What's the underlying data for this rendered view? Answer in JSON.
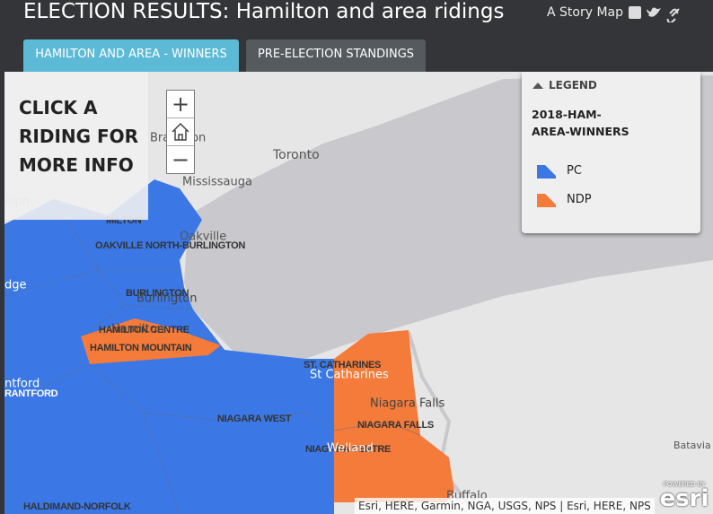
{
  "header": {
    "title": "ELECTION RESULTS: Hamilton and area ridings",
    "story_map_label": "A Story Map"
  },
  "tabs": [
    "HAMILTON AND AREA - WINNERS",
    "PRE-ELECTION STANDINGS"
  ],
  "panel": {
    "lines": [
      "CLICK A",
      "RIDING FOR",
      "MORE INFO"
    ]
  },
  "zoom": {
    "in": "+",
    "out": "−"
  },
  "legend": {
    "heading": "LEGEND",
    "title_lines": [
      "2018-HAM-",
      "AREA-WINNERS"
    ],
    "items": [
      {
        "label": "PC",
        "color": "#3b78e6"
      },
      {
        "label": "NDP",
        "color": "#f47b3a"
      }
    ]
  },
  "map_labels": [
    "Bra",
    "ton",
    "Toronto",
    "Mississauga",
    "elph",
    "MILTON",
    "Oakville",
    "OAKVILLE NORTH-BURLINGTON",
    "dge",
    "BURLINGTON",
    "Burlington",
    "HAMILTON CENTRE",
    "Hamilton",
    "HAMILTON MOUNTAIN",
    "ST. CATHARINES",
    "St Catharines",
    "Niagara Falls",
    "NIAGARA FALLS",
    "NIAGARA WEST",
    "NIAGARA CENTRE",
    "Welland",
    "ntford",
    "RANTFORD",
    "Batavia",
    "Buffalo",
    "HALDIMAND-NORFOLK"
  ],
  "attribution": "Esri, HERE, Garmin, NGA, USGS, NPS | Esri, HERE, NPS",
  "logo": {
    "powered_by": "POWERED BY",
    "brand": "esri"
  }
}
